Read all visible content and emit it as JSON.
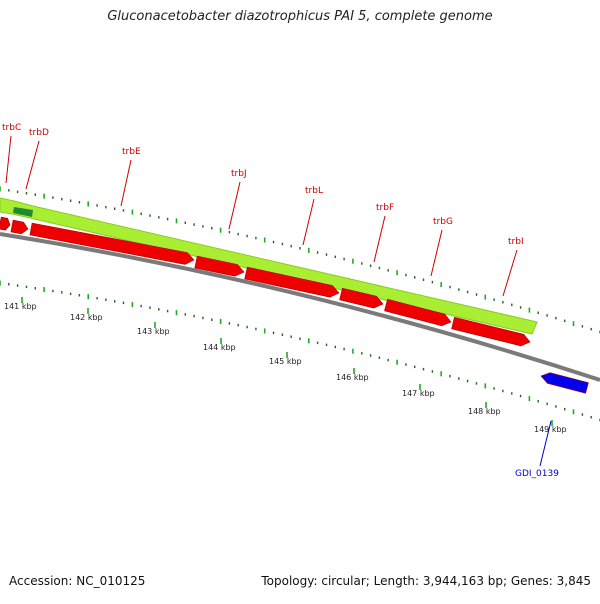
{
  "title": "Gluconacetobacter diazotrophicus PAI 5, complete genome",
  "footer": {
    "accession": "Accession: NC_010125",
    "topology": "Topology: circular; Length: 3,944,163 bp; Genes: 3,845"
  },
  "colors": {
    "backbone": "#7a7a7a",
    "forward_strand": "#aaee33",
    "forward_strand_edge": "#88cc22",
    "forward_marker": "#228833",
    "reverse_genes": "#ee0000",
    "highlighted_gene": "#0000ee",
    "label_red": "#cc0000",
    "label_blue": "#0000cc",
    "tick_major": "#22aa22",
    "tick_minor": "#226622"
  },
  "feature_labels": [
    {
      "name": "trbC",
      "color": "red"
    },
    {
      "name": "trbD",
      "color": "red"
    },
    {
      "name": "trbE",
      "color": "red"
    },
    {
      "name": "trbJ",
      "color": "red"
    },
    {
      "name": "trbL",
      "color": "red"
    },
    {
      "name": "trbF",
      "color": "red"
    },
    {
      "name": "trbG",
      "color": "red"
    },
    {
      "name": "trbI",
      "color": "red"
    },
    {
      "name": "GDI_0139",
      "color": "blue"
    }
  ],
  "scale_labels": [
    "141 kbp",
    "142 kbp",
    "143 kbp",
    "144 kbp",
    "145 kbp",
    "146 kbp",
    "147 kbp",
    "148 kbp",
    "149 kbp"
  ]
}
